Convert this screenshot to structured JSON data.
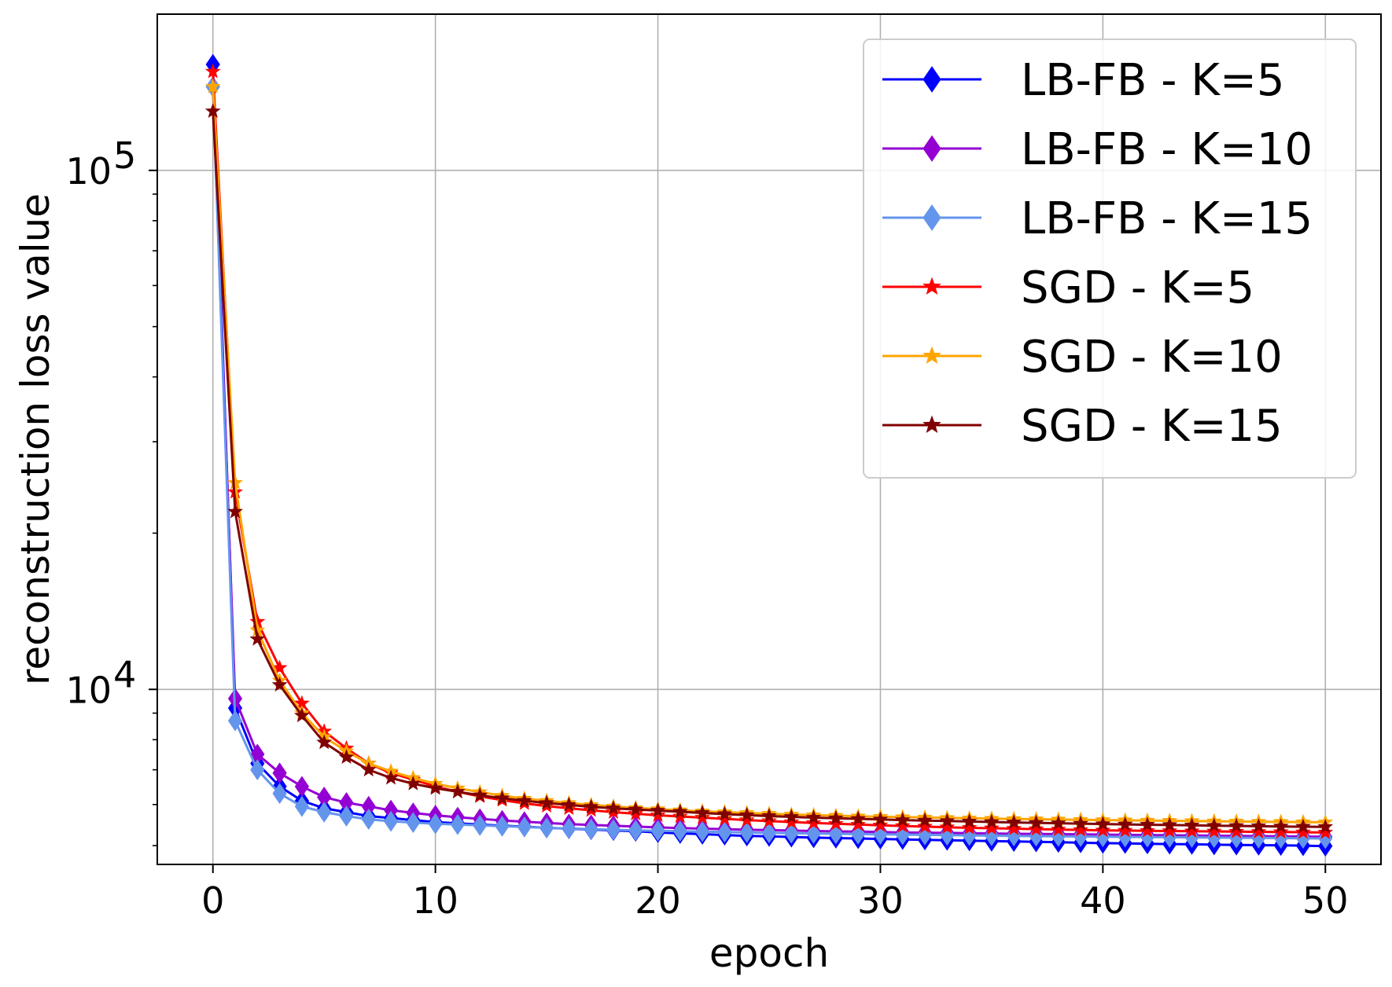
{
  "chart_data": {
    "type": "line",
    "title": "",
    "xlabel": "epoch",
    "ylabel": "reconstruction loss value",
    "yscale": "log",
    "xlim": [
      -2.5,
      52.5
    ],
    "ylim": [
      4600,
      200000
    ],
    "x_ticks": [
      0,
      10,
      20,
      30,
      40,
      50
    ],
    "x_tick_labels": [
      "0",
      "10",
      "20",
      "30",
      "40",
      "50"
    ],
    "y_major_ticks": [
      {
        "value": 10000,
        "base": "10",
        "exp": "4"
      },
      {
        "value": 100000,
        "base": "10",
        "exp": "5"
      }
    ],
    "y_minor_ticks": [
      5000,
      6000,
      7000,
      8000,
      9000,
      20000,
      30000,
      40000,
      50000,
      60000,
      70000,
      80000,
      90000
    ],
    "grid": true,
    "legend_position": "top-right",
    "epochs": 51,
    "series": [
      {
        "name": "LB-FB - K=5",
        "color": "#0000ff",
        "marker": "diamond",
        "values": [
          160000,
          9200,
          7200,
          6500,
          6100,
          5900,
          5800,
          5700,
          5650,
          5600,
          5550,
          5520,
          5490,
          5460,
          5440,
          5410,
          5390,
          5370,
          5350,
          5330,
          5300,
          5280,
          5260,
          5240,
          5220,
          5210,
          5195,
          5180,
          5170,
          5160,
          5150,
          5140,
          5130,
          5120,
          5110,
          5100,
          5095,
          5085,
          5075,
          5065,
          5055,
          5050,
          5040,
          5035,
          5030,
          5020,
          5015,
          5010,
          5005,
          5000,
          4990
        ]
      },
      {
        "name": "LB-FB - K=10",
        "color": "#9400d3",
        "marker": "diamond",
        "values": [
          145000,
          9600,
          7500,
          6900,
          6500,
          6200,
          6050,
          5950,
          5850,
          5780,
          5720,
          5670,
          5630,
          5590,
          5560,
          5530,
          5500,
          5480,
          5460,
          5440,
          5420,
          5405,
          5390,
          5380,
          5365,
          5355,
          5345,
          5335,
          5325,
          5320,
          5310,
          5300,
          5295,
          5290,
          5285,
          5275,
          5270,
          5265,
          5260,
          5255,
          5250,
          5245,
          5240,
          5235,
          5230,
          5225,
          5220,
          5215,
          5210,
          5205,
          5200
        ]
      },
      {
        "name": "LB-FB - K=15",
        "color": "#6495ed",
        "marker": "diamond",
        "values": [
          145000,
          8700,
          7000,
          6300,
          5950,
          5800,
          5700,
          5620,
          5570,
          5540,
          5510,
          5490,
          5470,
          5450,
          5430,
          5410,
          5395,
          5380,
          5365,
          5350,
          5340,
          5330,
          5320,
          5310,
          5300,
          5290,
          5283,
          5276,
          5270,
          5263,
          5256,
          5250,
          5244,
          5238,
          5232,
          5226,
          5221,
          5216,
          5211,
          5206,
          5201,
          5197,
          5193,
          5189,
          5185,
          5181,
          5177,
          5173,
          5169,
          5165,
          5160
        ]
      },
      {
        "name": "SGD - K=5",
        "color": "#ff0000",
        "marker": "star",
        "values": [
          155000,
          24000,
          13500,
          11000,
          9400,
          8300,
          7700,
          7200,
          6900,
          6700,
          6500,
          6350,
          6220,
          6120,
          6030,
          5960,
          5900,
          5850,
          5800,
          5760,
          5720,
          5690,
          5660,
          5630,
          5600,
          5575,
          5550,
          5530,
          5510,
          5490,
          5470,
          5455,
          5440,
          5425,
          5410,
          5400,
          5390,
          5380,
          5370,
          5360,
          5350,
          5345,
          5340,
          5335,
          5330,
          5325,
          5320,
          5315,
          5310,
          5305,
          5300
        ]
      },
      {
        "name": "SGD - K=10",
        "color": "#ffa500",
        "marker": "star",
        "values": [
          145000,
          25000,
          13000,
          10400,
          9000,
          8100,
          7600,
          7200,
          6950,
          6750,
          6580,
          6450,
          6340,
          6240,
          6160,
          6100,
          6040,
          5990,
          5950,
          5910,
          5880,
          5850,
          5820,
          5800,
          5780,
          5760,
          5740,
          5725,
          5710,
          5695,
          5685,
          5675,
          5665,
          5655,
          5645,
          5635,
          5628,
          5621,
          5614,
          5607,
          5600,
          5594,
          5588,
          5582,
          5576,
          5570,
          5565,
          5560,
          5555,
          5550,
          5545
        ]
      },
      {
        "name": "SGD - K=15",
        "color": "#800000",
        "marker": "star",
        "values": [
          130000,
          22000,
          12500,
          10200,
          8900,
          7900,
          7400,
          7000,
          6750,
          6580,
          6450,
          6350,
          6250,
          6170,
          6100,
          6040,
          5990,
          5940,
          5900,
          5870,
          5840,
          5810,
          5780,
          5750,
          5725,
          5700,
          5680,
          5660,
          5645,
          5630,
          5615,
          5600,
          5588,
          5576,
          5564,
          5552,
          5542,
          5532,
          5522,
          5512,
          5502,
          5494,
          5486,
          5478,
          5470,
          5462,
          5456,
          5450,
          5444,
          5438,
          5432
        ]
      }
    ]
  }
}
